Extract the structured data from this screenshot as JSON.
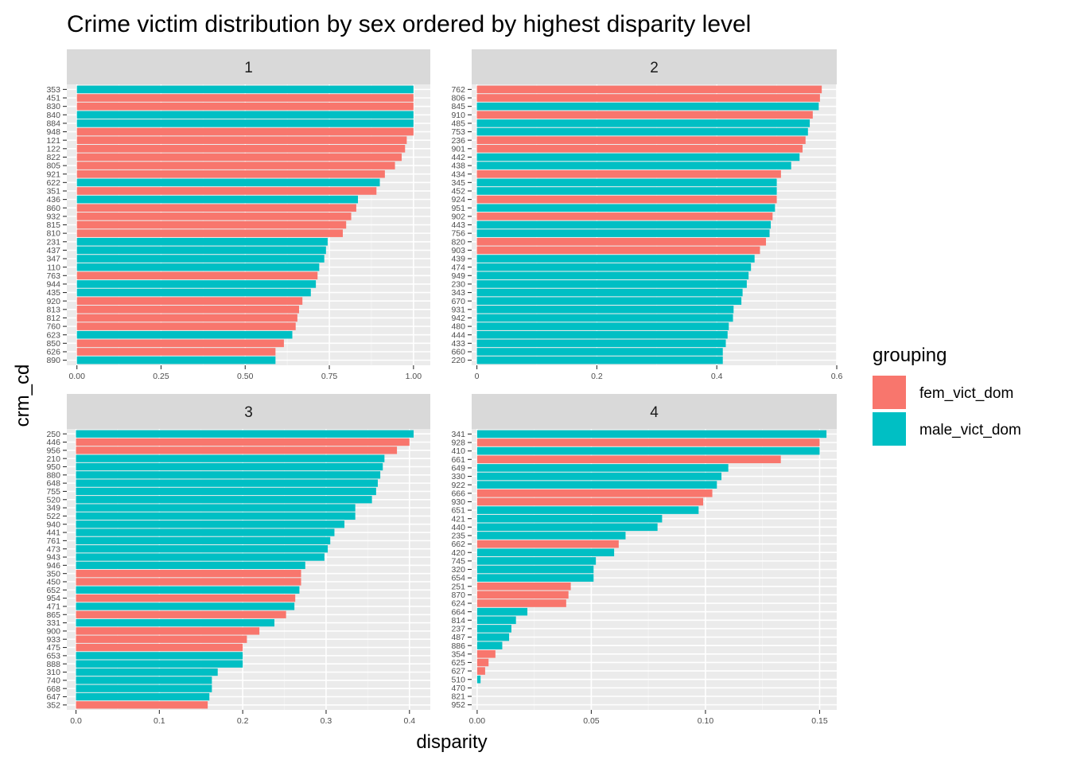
{
  "chart_data": {
    "type": "bar",
    "orientation": "horizontal",
    "title": "Crime victim distribution by sex ordered by highest disparity level",
    "xlabel": "disparity",
    "ylabel": "crm_cd",
    "legend": {
      "title": "grouping",
      "placement": "right",
      "entries": [
        {
          "key": "F",
          "label": "fem_vict_dom",
          "color": "#F8766D"
        },
        {
          "key": "M",
          "label": "male_vict_dom",
          "color": "#00BFC4"
        }
      ]
    },
    "grid": true,
    "facets": [
      {
        "strip": "1",
        "xlim": [
          -0.03,
          1.05
        ],
        "xticks": [
          0,
          0.25,
          0.5,
          0.75,
          1
        ],
        "xtick_labels": [
          "0.00",
          "0.25",
          "0.50",
          "0.75",
          "1.00"
        ],
        "bars": [
          {
            "cd": "353",
            "value": 1.0,
            "group": "M"
          },
          {
            "cd": "451",
            "value": 1.0,
            "group": "F"
          },
          {
            "cd": "830",
            "value": 1.0,
            "group": "F"
          },
          {
            "cd": "840",
            "value": 1.0,
            "group": "M"
          },
          {
            "cd": "884",
            "value": 1.0,
            "group": "M"
          },
          {
            "cd": "948",
            "value": 1.0,
            "group": "F"
          },
          {
            "cd": "121",
            "value": 0.98,
            "group": "F"
          },
          {
            "cd": "122",
            "value": 0.975,
            "group": "F"
          },
          {
            "cd": "822",
            "value": 0.965,
            "group": "F"
          },
          {
            "cd": "805",
            "value": 0.945,
            "group": "F"
          },
          {
            "cd": "921",
            "value": 0.915,
            "group": "F"
          },
          {
            "cd": "622",
            "value": 0.9,
            "group": "M"
          },
          {
            "cd": "351",
            "value": 0.89,
            "group": "F"
          },
          {
            "cd": "436",
            "value": 0.835,
            "group": "M"
          },
          {
            "cd": "860",
            "value": 0.83,
            "group": "F"
          },
          {
            "cd": "932",
            "value": 0.815,
            "group": "F"
          },
          {
            "cd": "815",
            "value": 0.8,
            "group": "F"
          },
          {
            "cd": "810",
            "value": 0.79,
            "group": "F"
          },
          {
            "cd": "231",
            "value": 0.745,
            "group": "M"
          },
          {
            "cd": "437",
            "value": 0.74,
            "group": "M"
          },
          {
            "cd": "347",
            "value": 0.735,
            "group": "M"
          },
          {
            "cd": "110",
            "value": 0.72,
            "group": "M"
          },
          {
            "cd": "763",
            "value": 0.715,
            "group": "F"
          },
          {
            "cd": "944",
            "value": 0.71,
            "group": "M"
          },
          {
            "cd": "435",
            "value": 0.695,
            "group": "M"
          },
          {
            "cd": "920",
            "value": 0.67,
            "group": "F"
          },
          {
            "cd": "813",
            "value": 0.66,
            "group": "F"
          },
          {
            "cd": "812",
            "value": 0.655,
            "group": "F"
          },
          {
            "cd": "760",
            "value": 0.65,
            "group": "F"
          },
          {
            "cd": "623",
            "value": 0.64,
            "group": "M"
          },
          {
            "cd": "850",
            "value": 0.615,
            "group": "F"
          },
          {
            "cd": "626",
            "value": 0.59,
            "group": "F"
          },
          {
            "cd": "890",
            "value": 0.59,
            "group": "M"
          }
        ]
      },
      {
        "strip": "2",
        "xlim": [
          -0.0087,
          0.6
        ],
        "xticks": [
          0,
          0.2,
          0.4,
          0.6
        ],
        "xtick_labels": [
          "0",
          "0.2",
          "0.4",
          "0.6"
        ],
        "bars": [
          {
            "cd": "762",
            "value": 0.575,
            "group": "F"
          },
          {
            "cd": "806",
            "value": 0.572,
            "group": "F"
          },
          {
            "cd": "845",
            "value": 0.57,
            "group": "M"
          },
          {
            "cd": "910",
            "value": 0.56,
            "group": "F"
          },
          {
            "cd": "485",
            "value": 0.555,
            "group": "M"
          },
          {
            "cd": "753",
            "value": 0.552,
            "group": "M"
          },
          {
            "cd": "236",
            "value": 0.548,
            "group": "F"
          },
          {
            "cd": "901",
            "value": 0.543,
            "group": "F"
          },
          {
            "cd": "442",
            "value": 0.538,
            "group": "M"
          },
          {
            "cd": "438",
            "value": 0.524,
            "group": "M"
          },
          {
            "cd": "434",
            "value": 0.507,
            "group": "F"
          },
          {
            "cd": "345",
            "value": 0.5,
            "group": "M"
          },
          {
            "cd": "452",
            "value": 0.5,
            "group": "M"
          },
          {
            "cd": "924",
            "value": 0.5,
            "group": "F"
          },
          {
            "cd": "951",
            "value": 0.497,
            "group": "M"
          },
          {
            "cd": "902",
            "value": 0.493,
            "group": "F"
          },
          {
            "cd": "443",
            "value": 0.49,
            "group": "M"
          },
          {
            "cd": "756",
            "value": 0.488,
            "group": "M"
          },
          {
            "cd": "820",
            "value": 0.482,
            "group": "F"
          },
          {
            "cd": "903",
            "value": 0.472,
            "group": "F"
          },
          {
            "cd": "439",
            "value": 0.463,
            "group": "M"
          },
          {
            "cd": "474",
            "value": 0.457,
            "group": "M"
          },
          {
            "cd": "949",
            "value": 0.453,
            "group": "M"
          },
          {
            "cd": "230",
            "value": 0.45,
            "group": "M"
          },
          {
            "cd": "343",
            "value": 0.443,
            "group": "M"
          },
          {
            "cd": "670",
            "value": 0.441,
            "group": "M"
          },
          {
            "cd": "931",
            "value": 0.428,
            "group": "M"
          },
          {
            "cd": "942",
            "value": 0.427,
            "group": "M"
          },
          {
            "cd": "480",
            "value": 0.42,
            "group": "M"
          },
          {
            "cd": "444",
            "value": 0.418,
            "group": "M"
          },
          {
            "cd": "433",
            "value": 0.415,
            "group": "M"
          },
          {
            "cd": "660",
            "value": 0.41,
            "group": "M"
          },
          {
            "cd": "220",
            "value": 0.41,
            "group": "M"
          }
        ]
      },
      {
        "strip": "3",
        "xlim": [
          -0.011,
          0.425
        ],
        "xticks": [
          0,
          0.1,
          0.2,
          0.3,
          0.4
        ],
        "xtick_labels": [
          "0.0",
          "0.1",
          "0.2",
          "0.3",
          "0.4"
        ],
        "bars": [
          {
            "cd": "250",
            "value": 0.405,
            "group": "M"
          },
          {
            "cd": "446",
            "value": 0.4,
            "group": "F"
          },
          {
            "cd": "956",
            "value": 0.385,
            "group": "F"
          },
          {
            "cd": "210",
            "value": 0.37,
            "group": "M"
          },
          {
            "cd": "950",
            "value": 0.368,
            "group": "M"
          },
          {
            "cd": "880",
            "value": 0.365,
            "group": "M"
          },
          {
            "cd": "648",
            "value": 0.362,
            "group": "M"
          },
          {
            "cd": "755",
            "value": 0.36,
            "group": "M"
          },
          {
            "cd": "520",
            "value": 0.355,
            "group": "M"
          },
          {
            "cd": "349",
            "value": 0.335,
            "group": "M"
          },
          {
            "cd": "522",
            "value": 0.335,
            "group": "M"
          },
          {
            "cd": "940",
            "value": 0.322,
            "group": "M"
          },
          {
            "cd": "441",
            "value": 0.31,
            "group": "M"
          },
          {
            "cd": "761",
            "value": 0.305,
            "group": "M"
          },
          {
            "cd": "473",
            "value": 0.302,
            "group": "M"
          },
          {
            "cd": "943",
            "value": 0.298,
            "group": "M"
          },
          {
            "cd": "946",
            "value": 0.275,
            "group": "M"
          },
          {
            "cd": "350",
            "value": 0.27,
            "group": "F"
          },
          {
            "cd": "450",
            "value": 0.27,
            "group": "F"
          },
          {
            "cd": "652",
            "value": 0.268,
            "group": "M"
          },
          {
            "cd": "954",
            "value": 0.263,
            "group": "F"
          },
          {
            "cd": "471",
            "value": 0.262,
            "group": "M"
          },
          {
            "cd": "865",
            "value": 0.252,
            "group": "F"
          },
          {
            "cd": "331",
            "value": 0.238,
            "group": "M"
          },
          {
            "cd": "900",
            "value": 0.22,
            "group": "F"
          },
          {
            "cd": "933",
            "value": 0.205,
            "group": "F"
          },
          {
            "cd": "475",
            "value": 0.2,
            "group": "F"
          },
          {
            "cd": "653",
            "value": 0.2,
            "group": "M"
          },
          {
            "cd": "888",
            "value": 0.2,
            "group": "M"
          },
          {
            "cd": "310",
            "value": 0.17,
            "group": "M"
          },
          {
            "cd": "740",
            "value": 0.163,
            "group": "M"
          },
          {
            "cd": "668",
            "value": 0.163,
            "group": "M"
          },
          {
            "cd": "647",
            "value": 0.16,
            "group": "M"
          },
          {
            "cd": "352",
            "value": 0.158,
            "group": "F"
          }
        ]
      },
      {
        "strip": "4",
        "xlim": [
          -0.0024,
          0.1575
        ],
        "xticks": [
          0,
          0.05,
          0.1,
          0.15
        ],
        "xtick_labels": [
          "0.00",
          "0.05",
          "0.10",
          "0.15"
        ],
        "bars": [
          {
            "cd": "341",
            "value": 0.153,
            "group": "M"
          },
          {
            "cd": "928",
            "value": 0.15,
            "group": "F"
          },
          {
            "cd": "410",
            "value": 0.15,
            "group": "M"
          },
          {
            "cd": "661",
            "value": 0.133,
            "group": "F"
          },
          {
            "cd": "649",
            "value": 0.11,
            "group": "M"
          },
          {
            "cd": "330",
            "value": 0.107,
            "group": "M"
          },
          {
            "cd": "922",
            "value": 0.105,
            "group": "M"
          },
          {
            "cd": "666",
            "value": 0.103,
            "group": "F"
          },
          {
            "cd": "930",
            "value": 0.099,
            "group": "F"
          },
          {
            "cd": "651",
            "value": 0.097,
            "group": "M"
          },
          {
            "cd": "421",
            "value": 0.081,
            "group": "M"
          },
          {
            "cd": "440",
            "value": 0.079,
            "group": "M"
          },
          {
            "cd": "235",
            "value": 0.065,
            "group": "M"
          },
          {
            "cd": "662",
            "value": 0.062,
            "group": "F"
          },
          {
            "cd": "420",
            "value": 0.06,
            "group": "M"
          },
          {
            "cd": "745",
            "value": 0.052,
            "group": "M"
          },
          {
            "cd": "320",
            "value": 0.051,
            "group": "M"
          },
          {
            "cd": "654",
            "value": 0.051,
            "group": "M"
          },
          {
            "cd": "251",
            "value": 0.041,
            "group": "F"
          },
          {
            "cd": "870",
            "value": 0.04,
            "group": "F"
          },
          {
            "cd": "624",
            "value": 0.039,
            "group": "F"
          },
          {
            "cd": "664",
            "value": 0.022,
            "group": "M"
          },
          {
            "cd": "814",
            "value": 0.017,
            "group": "M"
          },
          {
            "cd": "237",
            "value": 0.015,
            "group": "M"
          },
          {
            "cd": "487",
            "value": 0.014,
            "group": "M"
          },
          {
            "cd": "886",
            "value": 0.011,
            "group": "M"
          },
          {
            "cd": "354",
            "value": 0.008,
            "group": "F"
          },
          {
            "cd": "625",
            "value": 0.005,
            "group": "F"
          },
          {
            "cd": "627",
            "value": 0.0035,
            "group": "F"
          },
          {
            "cd": "510",
            "value": 0.0015,
            "group": "M"
          },
          {
            "cd": "470",
            "value": 0,
            "group": "M"
          },
          {
            "cd": "821",
            "value": 0,
            "group": "M"
          },
          {
            "cd": "952",
            "value": 0,
            "group": "M"
          }
        ]
      }
    ]
  }
}
